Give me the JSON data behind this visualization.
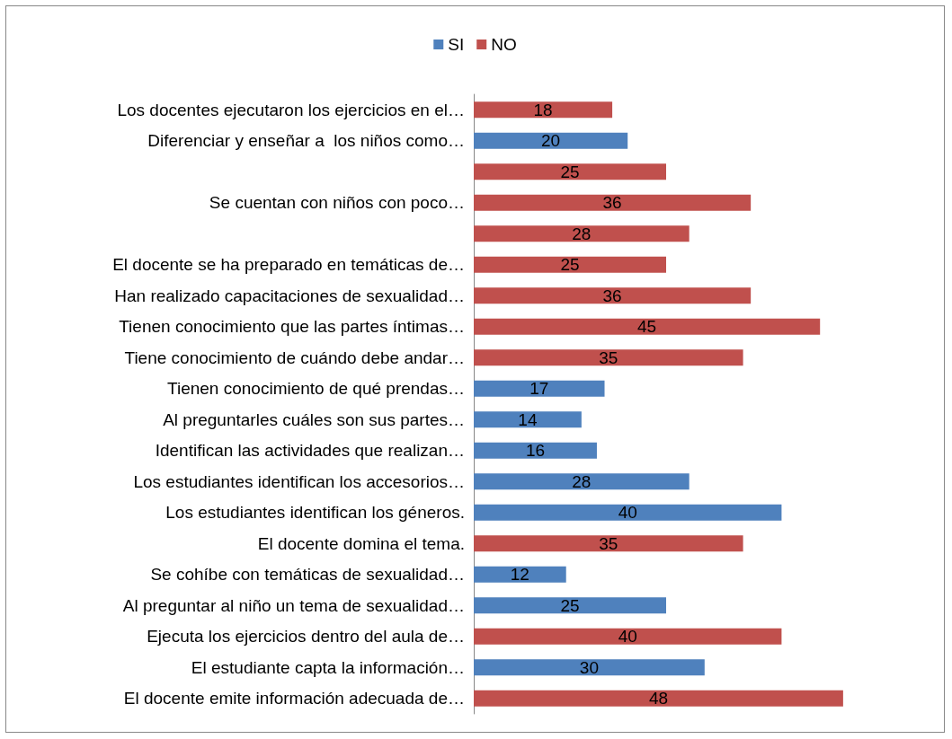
{
  "chart_data": {
    "type": "bar",
    "orientation": "horizontal",
    "stacked": true,
    "data_labels": true,
    "tick_labels": "y",
    "legend": "top",
    "categories": [
      "Los docentes ejecutaron los ejercicios en el…",
      "Diferenciar y enseñar a  los niños como…",
      null,
      "Se cuentan con niños con poco…",
      null,
      "El docente se ha preparado en temáticas de…",
      "Han realizado capacitaciones de sexualidad…",
      "Tienen conocimiento que las partes íntimas…",
      "Tiene conocimiento de cuándo debe andar…",
      "Tienen conocimiento de qué prendas…",
      "Al preguntarles cuáles son sus partes…",
      "Identifican las actividades que realizan…",
      "Los estudiantes identifican los accesorios…",
      "Los estudiantes identifican los géneros.",
      "El docente domina el tema.",
      "Se cohíbe con temáticas de sexualidad…",
      "Al preguntar al niño un tema de sexualidad…",
      "Ejecuta los ejercicios dentro del aula de…",
      "El estudiante capta la información…",
      "El docente emite información adecuada de…"
    ],
    "series": [
      {
        "name": "SI",
        "color": "#4f81bd",
        "values": [
          null,
          20,
          null,
          null,
          null,
          null,
          null,
          null,
          null,
          17,
          14,
          16,
          28,
          40,
          null,
          12,
          25,
          null,
          30,
          null
        ]
      },
      {
        "name": "NO",
        "color": "#c0504d",
        "values": [
          18,
          null,
          25,
          36,
          28,
          25,
          36,
          45,
          35,
          null,
          null,
          null,
          null,
          null,
          35,
          null,
          null,
          40,
          null,
          48
        ]
      }
    ]
  }
}
